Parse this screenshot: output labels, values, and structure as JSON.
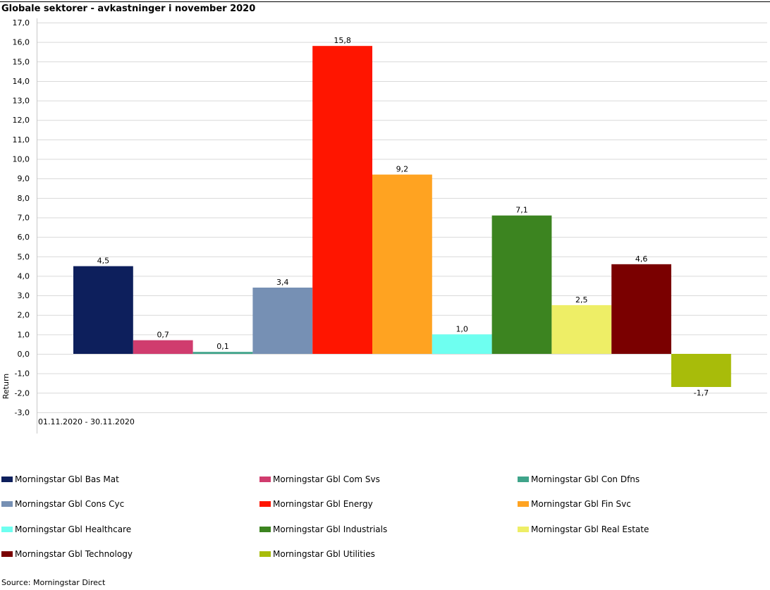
{
  "chart_data": {
    "type": "bar",
    "title": "Globale sektorer - avkastninger i november 2020",
    "xlabel": "01.11.2020 - 30.11.2020",
    "ylabel": "Return",
    "ylim": [
      -3,
      17
    ],
    "yticks": [
      "17,0",
      "16,0",
      "15,0",
      "14,0",
      "13,0",
      "12,0",
      "11,0",
      "10,0",
      "9,0",
      "8,0",
      "7,0",
      "6,0",
      "5,0",
      "4,0",
      "3,0",
      "2,0",
      "1,0",
      "0,0",
      "-1,0",
      "-2,0",
      "-3,0"
    ],
    "grid": true,
    "legend_position": "bottom",
    "series": [
      {
        "name": "Morningstar Gbl Bas Mat",
        "value": 4.5,
        "label": "4,5",
        "color": "#0d1f5c"
      },
      {
        "name": "Morningstar Gbl Com Svs",
        "value": 0.7,
        "label": "0,7",
        "color": "#d03c6e"
      },
      {
        "name": "Morningstar Gbl Con Dfns",
        "value": 0.1,
        "label": "0,1",
        "color": "#3fa48a"
      },
      {
        "name": "Morningstar Gbl Cons Cyc",
        "value": 3.4,
        "label": "3,4",
        "color": "#7690b4"
      },
      {
        "name": "Morningstar Gbl Energy",
        "value": 15.8,
        "label": "15,8",
        "color": "#ff1500"
      },
      {
        "name": "Morningstar Gbl Fin Svc",
        "value": 9.2,
        "label": "9,2",
        "color": "#ffa321"
      },
      {
        "name": "Morningstar Gbl Healthcare",
        "value": 1.0,
        "label": "1,0",
        "color": "#6efff0"
      },
      {
        "name": "Morningstar Gbl Industrials",
        "value": 7.1,
        "label": "7,1",
        "color": "#3c8420"
      },
      {
        "name": "Morningstar Gbl Real Estate",
        "value": 2.5,
        "label": "2,5",
        "color": "#eeee66"
      },
      {
        "name": "Morningstar Gbl Technology",
        "value": 4.6,
        "label": "4,6",
        "color": "#7a0000"
      },
      {
        "name": "Morningstar Gbl Utilities",
        "value": -1.7,
        "label": "-1,7",
        "color": "#a8bc0a"
      }
    ]
  },
  "source": "Source: Morningstar Direct"
}
